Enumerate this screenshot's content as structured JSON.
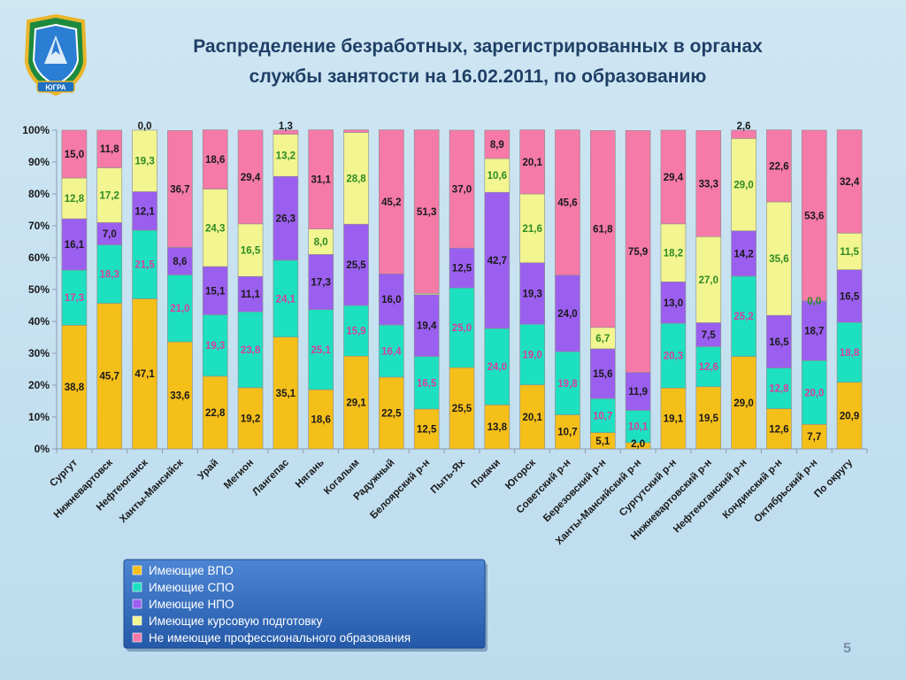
{
  "slide": {
    "title_line1": "Распределение  безработных, зарегистрированных в органах",
    "title_line2": "службы занятости на 16.02.2011, по образованию",
    "page_number": "5",
    "emblem_caption": "ЮГРА"
  },
  "chart_data": {
    "type": "bar",
    "stacked": true,
    "percent": true,
    "title": "Распределение  безработных, зарегистрированных в органах службы занятости на 16.02.2011, по образованию",
    "xlabel": "",
    "ylabel": "",
    "ylim": [
      0,
      100
    ],
    "y_ticks": [
      "0%",
      "10%",
      "20%",
      "30%",
      "40%",
      "50%",
      "60%",
      "70%",
      "80%",
      "90%",
      "100%"
    ],
    "grid": false,
    "legend_position": "bottom",
    "categories": [
      "Сургут",
      "Нижневартовск",
      "Нефтеюганск",
      "Ханты-Мансийск",
      "Урай",
      "Мегион",
      "Лангепас",
      "Нягань",
      "Когалым",
      "Радужный",
      "Белоярский р-н",
      "Пыть-Ях",
      "Покачи",
      "Югорск",
      "Советский р-н",
      "Березовский р-н",
      "Ханты-Мансийский р-н",
      "Сургутский р-н",
      "Нижневартовский р-н",
      "Нефтеюганский р-н",
      "Кондинский р-н",
      "Октябрьский р-н",
      "По округу"
    ],
    "series": [
      {
        "name": "Имеющие ВПО",
        "color": "#f5bf1a",
        "label_color": "#1a1a1a",
        "values": [
          38.8,
          45.7,
          47.1,
          33.6,
          22.8,
          19.2,
          35.1,
          18.6,
          29.1,
          22.5,
          12.5,
          25.5,
          13.8,
          20.1,
          10.7,
          5.1,
          2.0,
          19.1,
          19.5,
          29.0,
          12.6,
          7.7,
          20.9
        ]
      },
      {
        "name": "Имеющие СПО",
        "color": "#1de0c0",
        "label_color": "#d63fa0",
        "values": [
          17.3,
          18.3,
          21.5,
          21.0,
          19.3,
          23.8,
          24.1,
          25.1,
          15.9,
          16.4,
          16.5,
          25.0,
          24.0,
          19.0,
          19.8,
          10.7,
          10.1,
          20.3,
          12.6,
          25.2,
          12.8,
          20.0,
          18.8
        ]
      },
      {
        "name": "Имеющие НПО",
        "color": "#9b5ff0",
        "label_color": "#1a1a1a",
        "values": [
          16.1,
          7.0,
          12.1,
          8.6,
          15.1,
          11.1,
          26.3,
          17.3,
          25.5,
          16.0,
          19.4,
          12.5,
          42.7,
          19.3,
          24.0,
          15.6,
          11.9,
          13.0,
          7.5,
          14.2,
          16.5,
          18.7,
          16.5
        ]
      },
      {
        "name": "Имеющие курсовую подготовку",
        "color": "#f2f590",
        "label_color": "#2e8b22",
        "values": [
          12.8,
          17.2,
          19.3,
          0.0,
          24.3,
          16.5,
          13.2,
          8.0,
          28.8,
          0.0,
          0.4,
          0.0,
          10.6,
          21.6,
          0.0,
          6.7,
          0.0,
          18.2,
          27.0,
          29.0,
          35.6,
          0.0,
          11.5
        ]
      },
      {
        "name": "Не имеющие профессионального образования",
        "color": "#f57aa8",
        "label_color": "#1a1a1a",
        "values": [
          15.0,
          11.8,
          0.0,
          36.7,
          18.6,
          29.4,
          1.3,
          31.1,
          0.8,
          45.2,
          51.3,
          37.0,
          8.9,
          20.1,
          45.6,
          61.8,
          75.9,
          29.4,
          33.3,
          2.6,
          22.6,
          53.6,
          32.4
        ]
      }
    ],
    "data_labels": [
      [
        "38,8",
        "17,3",
        "16,1",
        "12,8",
        "15,0"
      ],
      [
        "45,7",
        "18,3",
        "7,0",
        "17,2",
        "11,8"
      ],
      [
        "47,1",
        "21,5",
        "12,1",
        "19,3",
        "0,0"
      ],
      [
        "33,6",
        "21,0",
        "8,6",
        "",
        "36,7"
      ],
      [
        "22,8",
        "19,3",
        "15,1",
        "24,3",
        "18,6"
      ],
      [
        "19,2",
        "23,8",
        "11,1",
        "16,5",
        "29,4"
      ],
      [
        "35,1",
        "24,1",
        "26,3",
        "13,2",
        "1,3"
      ],
      [
        "18,6",
        "25,1",
        "17,3",
        "8,0",
        "31,1"
      ],
      [
        "29,1",
        "15,9",
        "25,5",
        "28,8",
        ""
      ],
      [
        "22,5",
        "16,4",
        "16,0",
        "",
        "45,2"
      ],
      [
        "12,5",
        "16,5",
        "19,4",
        "",
        "51,3"
      ],
      [
        "25,5",
        "25,0",
        "12,5",
        "",
        "37,0"
      ],
      [
        "13,8",
        "24,0",
        "42,7",
        "10,6",
        "8,9"
      ],
      [
        "20,1",
        "19,0",
        "19,3",
        "21,6",
        "20,1"
      ],
      [
        "10,7",
        "19,8",
        "24,0",
        "",
        "45,6"
      ],
      [
        "5,1",
        "10,7",
        "15,6",
        "6,7",
        "61,8"
      ],
      [
        "2,0",
        "10,1",
        "11,9",
        "",
        "75,9"
      ],
      [
        "19,1",
        "20,3",
        "13,0",
        "18,2",
        "29,4"
      ],
      [
        "19,5",
        "12,6",
        "7,5",
        "27,0",
        "33,3"
      ],
      [
        "29,0",
        "25,2",
        "14,2",
        "29,0",
        "2,6"
      ],
      [
        "12,6",
        "12,8",
        "16,5",
        "35,6",
        "22,6"
      ],
      [
        "7,7",
        "20,0",
        "18,7",
        "0,0",
        "53,6"
      ],
      [
        "20,9",
        "18,8",
        "16,5",
        "11,5",
        "32,4"
      ]
    ]
  }
}
